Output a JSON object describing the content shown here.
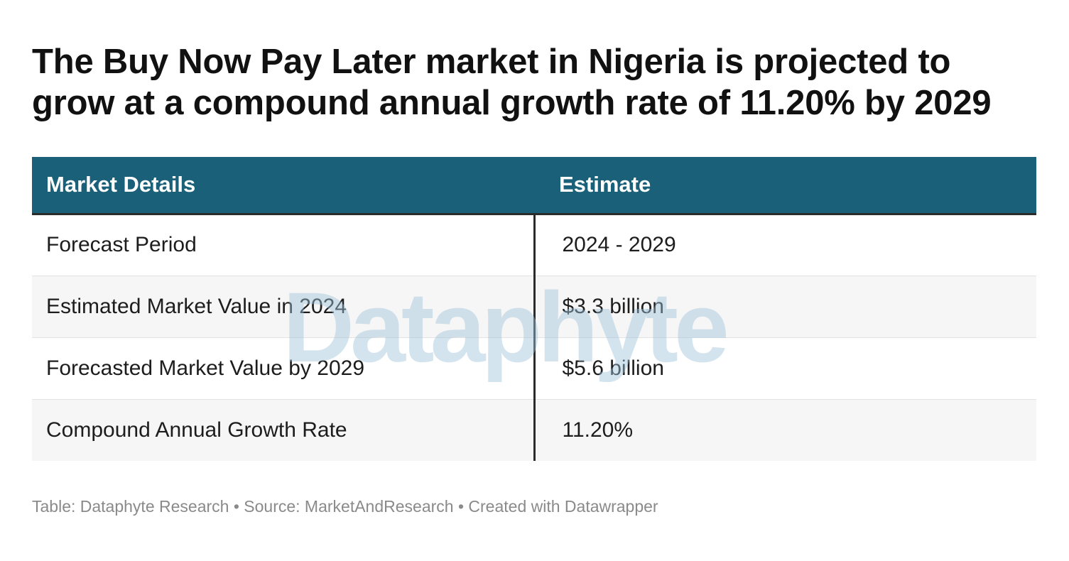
{
  "chart_data": {
    "type": "table",
    "title": "The Buy Now Pay Later market in Nigeria is projected to grow at a compound annual growth rate of 11.20% by 2029",
    "columns": [
      "Market Details",
      "Estimate"
    ],
    "rows": [
      [
        "Forecast Period",
        "2024 - 2029"
      ],
      [
        "Estimated Market Value in 2024",
        "$3.3 billion"
      ],
      [
        "Forecasted Market Value by 2029",
        "$5.6 billion"
      ],
      [
        "Compound Annual Growth Rate",
        "11.20%"
      ]
    ]
  },
  "watermark": "Dataphyte",
  "footer": "Table: Dataphyte Research • Source: MarketAndResearch • Created with Datawrapper",
  "colors": {
    "header_bg": "#1a6079",
    "header_text": "#ffffff",
    "alt_row_bg": "#f6f6f6"
  }
}
